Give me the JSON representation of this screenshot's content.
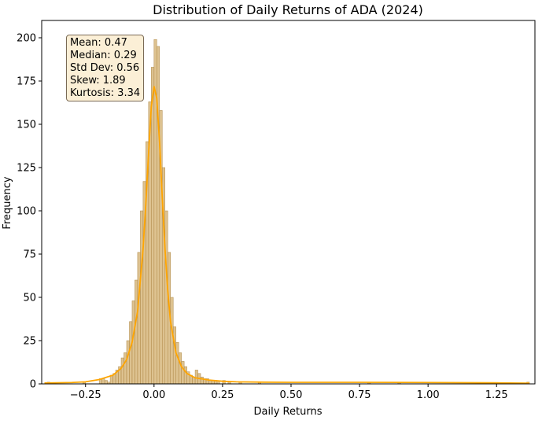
{
  "chart_data": {
    "type": "histogram",
    "title": "Distribution of Daily Returns of ADA (2024)",
    "xlabel": "Daily Returns",
    "ylabel": "Frequency",
    "xlim": [
      -0.41,
      1.39
    ],
    "ylim": [
      0,
      210
    ],
    "x_ticks": [
      -0.25,
      0.0,
      0.25,
      0.5,
      0.75,
      1.0,
      1.25
    ],
    "x_tick_labels": [
      "−0.25",
      "0.00",
      "0.25",
      "0.50",
      "0.75",
      "1.00",
      "1.25"
    ],
    "y_ticks": [
      0,
      25,
      50,
      75,
      100,
      125,
      150,
      175,
      200
    ],
    "y_tick_labels": [
      "0",
      "25",
      "50",
      "75",
      "100",
      "125",
      "150",
      "175",
      "200"
    ],
    "bin_width": 0.01,
    "bin_centers": [
      -0.385,
      -0.255,
      -0.195,
      -0.185,
      -0.175,
      -0.165,
      -0.155,
      -0.145,
      -0.135,
      -0.125,
      -0.115,
      -0.105,
      -0.095,
      -0.085,
      -0.075,
      -0.065,
      -0.055,
      -0.045,
      -0.035,
      -0.025,
      -0.015,
      -0.005,
      0.005,
      0.015,
      0.025,
      0.035,
      0.045,
      0.055,
      0.065,
      0.075,
      0.085,
      0.095,
      0.105,
      0.115,
      0.125,
      0.135,
      0.145,
      0.155,
      0.165,
      0.175,
      0.185,
      0.195,
      0.205,
      0.215,
      0.225,
      0.235,
      0.255,
      0.275,
      0.315,
      0.385,
      0.785,
      0.895,
      1.365
    ],
    "counts": [
      1,
      1,
      3,
      3,
      2,
      1,
      5,
      6,
      8,
      10,
      15,
      18,
      25,
      36,
      48,
      60,
      76,
      100,
      117,
      140,
      163,
      183,
      199,
      195,
      158,
      125,
      100,
      76,
      50,
      33,
      24,
      18,
      13,
      10,
      7,
      5,
      4,
      8,
      6,
      4,
      3,
      3,
      2,
      2,
      2,
      1,
      2,
      1,
      1,
      1,
      1,
      1,
      1
    ],
    "kde": {
      "x": [
        -0.4,
        -0.3,
        -0.25,
        -0.2,
        -0.15,
        -0.12,
        -0.1,
        -0.08,
        -0.06,
        -0.04,
        -0.03,
        -0.02,
        -0.01,
        0.0,
        0.01,
        0.02,
        0.03,
        0.04,
        0.05,
        0.06,
        0.08,
        0.1,
        0.12,
        0.15,
        0.2,
        0.25,
        0.3,
        0.4,
        0.5,
        0.75,
        1.0,
        1.25,
        1.37
      ],
      "y": [
        0.5,
        0.8,
        1.2,
        2.5,
        5,
        9,
        14,
        24,
        42,
        78,
        104,
        133,
        160,
        172,
        165,
        140,
        108,
        78,
        54,
        36,
        18,
        10,
        6,
        3.5,
        2.2,
        1.5,
        1.2,
        1,
        0.9,
        0.9,
        0.8,
        0.6,
        0.4
      ]
    },
    "bar_color": "#d1ad6b",
    "bar_edge_color": "#b08a4a",
    "kde_color": "#ffa500",
    "grid": false,
    "stats_box": {
      "position": "top-left",
      "lines": [
        "Mean: 0.47",
        "Median: 0.29",
        "Std Dev: 0.56",
        "Skew: 1.89",
        "Kurtosis: 3.34"
      ]
    }
  }
}
